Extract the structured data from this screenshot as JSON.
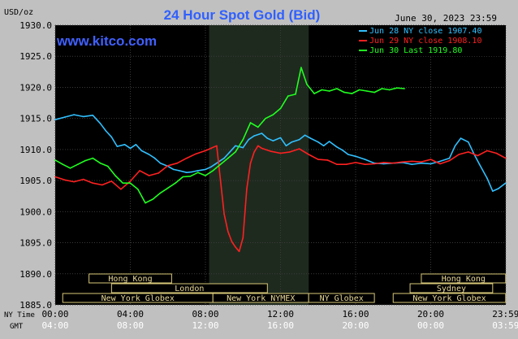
{
  "chart_data": {
    "type": "line",
    "title": "24 Hour Spot Gold (Bid)",
    "brand": "www.kitco.com",
    "timestamp": "June 30, 2023 23:59",
    "y_unit_label": "USD/oz",
    "ylim": [
      1885.0,
      1930.0
    ],
    "y_ticks": [
      "1930.0",
      "1925.0",
      "1920.0",
      "1915.0",
      "1910.0",
      "1905.0",
      "1900.0",
      "1895.0",
      "1890.0",
      "1885.0"
    ],
    "x_row_labels": {
      "ny": "NY Time",
      "gmt": "GMT"
    },
    "x_ticks_ny": [
      "00:00",
      "04:00",
      "08:00",
      "12:00",
      "16:00",
      "20:00",
      "23:59"
    ],
    "x_ticks_gmt": [
      "04:00",
      "08:00",
      "12:00",
      "16:00",
      "20:00",
      "00:00",
      "03:59"
    ],
    "xlim_hours": [
      0,
      24
    ],
    "highlight_hours": [
      8.2,
      13.5
    ],
    "grid": true,
    "legend_position": "top-right",
    "series": [
      {
        "name": "Jun 28 NY close 1907.40",
        "color": "#30c0ff",
        "x": [
          0,
          0.5,
          1,
          1.5,
          2,
          2.4,
          2.7,
          3.0,
          3.3,
          3.7,
          4.0,
          4.3,
          4.6,
          5.0,
          5.3,
          5.6,
          6.0,
          6.3,
          6.6,
          7.0,
          7.3,
          7.6,
          8.0,
          8.3,
          8.5,
          8.8,
          9.0,
          9.3,
          9.6,
          10.0,
          10.3,
          10.6,
          11.0,
          11.3,
          11.6,
          12.0,
          12.3,
          12.6,
          13.0,
          13.3,
          13.6,
          14.0,
          14.3,
          14.6,
          15.0,
          15.3,
          15.6,
          16.0,
          16.5,
          17.0,
          17.5,
          18.0,
          18.5,
          19.0,
          19.5,
          20.0,
          20.5,
          21.0,
          21.3,
          21.6,
          22.0,
          22.3,
          22.6,
          23.0,
          23.3,
          23.6,
          23.99
        ],
        "values": [
          1914.8,
          1915.2,
          1915.6,
          1915.3,
          1915.5,
          1914.2,
          1913.0,
          1912.0,
          1910.5,
          1910.8,
          1910.2,
          1910.8,
          1909.8,
          1909.2,
          1908.6,
          1907.8,
          1907.3,
          1906.8,
          1906.6,
          1906.3,
          1906.4,
          1906.6,
          1906.8,
          1907.2,
          1907.6,
          1908.2,
          1908.6,
          1909.6,
          1910.6,
          1910.3,
          1911.6,
          1912.2,
          1912.6,
          1911.8,
          1911.4,
          1911.9,
          1910.6,
          1911.2,
          1911.6,
          1912.3,
          1911.8,
          1911.2,
          1910.6,
          1911.3,
          1910.4,
          1909.9,
          1909.2,
          1908.9,
          1908.4,
          1907.8,
          1907.7,
          1907.8,
          1907.9,
          1907.6,
          1907.8,
          1907.7,
          1908.1,
          1908.6,
          1910.6,
          1911.8,
          1911.2,
          1909.3,
          1907.6,
          1905.4,
          1903.3,
          1903.7,
          1904.6
        ]
      },
      {
        "name": "Jun 29 NY close 1908.10",
        "color": "#ff2020",
        "x": [
          0,
          0.5,
          1,
          1.5,
          2,
          2.5,
          3.0,
          3.5,
          4.0,
          4.5,
          5.0,
          5.5,
          6.0,
          6.5,
          7.0,
          7.5,
          8.0,
          8.3,
          8.6,
          9.0,
          9.2,
          9.4,
          9.6,
          9.8,
          10.0,
          10.2,
          10.4,
          10.6,
          10.8,
          11.0,
          11.5,
          12.0,
          12.5,
          13.0,
          13.5,
          14.0,
          14.5,
          15.0,
          15.5,
          16.0,
          16.5,
          17.0,
          17.5,
          18.0,
          18.5,
          19.0,
          19.5,
          20.0,
          20.5,
          21.0,
          21.5,
          22.0,
          22.5,
          23.0,
          23.5,
          23.99
        ],
        "values": [
          1905.6,
          1905.1,
          1904.8,
          1905.2,
          1904.6,
          1904.3,
          1904.9,
          1903.6,
          1904.9,
          1906.6,
          1905.8,
          1906.2,
          1907.4,
          1907.8,
          1908.6,
          1909.3,
          1909.8,
          1910.2,
          1910.6,
          1899.6,
          1896.8,
          1895.2,
          1894.3,
          1893.6,
          1895.8,
          1903.6,
          1907.8,
          1909.6,
          1910.6,
          1910.2,
          1909.7,
          1909.4,
          1909.6,
          1910.1,
          1909.2,
          1908.4,
          1908.3,
          1907.6,
          1907.6,
          1907.9,
          1907.6,
          1907.7,
          1907.9,
          1907.8,
          1908.0,
          1908.1,
          1908.0,
          1908.4,
          1907.7,
          1908.2,
          1909.2,
          1909.6,
          1909.0,
          1909.8,
          1909.4,
          1908.6
        ]
      },
      {
        "name": "Jun 30 Last 1919.80",
        "color": "#20ff20",
        "x": [
          0,
          0.4,
          0.8,
          1.2,
          1.6,
          2.0,
          2.4,
          2.8,
          3.2,
          3.6,
          4.0,
          4.4,
          4.8,
          5.2,
          5.6,
          6.0,
          6.4,
          6.8,
          7.2,
          7.6,
          8.0,
          8.4,
          8.8,
          9.2,
          9.6,
          10.0,
          10.4,
          10.8,
          11.2,
          11.6,
          12.0,
          12.4,
          12.8,
          13.1,
          13.4,
          13.8,
          14.2,
          14.6,
          15.0,
          15.4,
          15.8,
          16.2,
          16.6,
          17.0,
          17.4,
          17.8,
          18.2,
          18.6
        ],
        "values": [
          1908.3,
          1907.6,
          1907.0,
          1907.6,
          1908.2,
          1908.6,
          1907.8,
          1907.3,
          1905.8,
          1904.6,
          1904.6,
          1903.6,
          1901.4,
          1902.0,
          1903.0,
          1903.8,
          1904.6,
          1905.6,
          1905.7,
          1906.3,
          1905.8,
          1906.6,
          1907.6,
          1908.6,
          1909.6,
          1911.6,
          1914.3,
          1913.6,
          1915.0,
          1915.6,
          1916.6,
          1918.6,
          1918.9,
          1923.2,
          1920.5,
          1919.0,
          1919.6,
          1919.4,
          1919.8,
          1919.2,
          1919.0,
          1919.6,
          1919.4,
          1919.2,
          1919.8,
          1919.6,
          1919.9,
          1919.8
        ]
      }
    ],
    "market_sessions": {
      "top_row": [
        {
          "label": "Hong Kong",
          "start": 1.8,
          "end": 6.2
        },
        {
          "label": "Hong Kong",
          "start": 19.5,
          "end": 23.99
        }
      ],
      "mid_row": [
        {
          "label": "London",
          "start": 3.0,
          "end": 11.3
        },
        {
          "label": "Sydney",
          "start": 18.9,
          "end": 23.3
        }
      ],
      "bottom_row": [
        {
          "label": "New York Globex",
          "start": 0.4,
          "end": 8.4
        },
        {
          "label": "New York NYMEX",
          "start": 8.4,
          "end": 13.5
        },
        {
          "label": "NY Globex",
          "start": 13.5,
          "end": 17.0
        },
        {
          "label": "New York Globex",
          "start": 18.0,
          "end": 23.99
        }
      ]
    }
  }
}
